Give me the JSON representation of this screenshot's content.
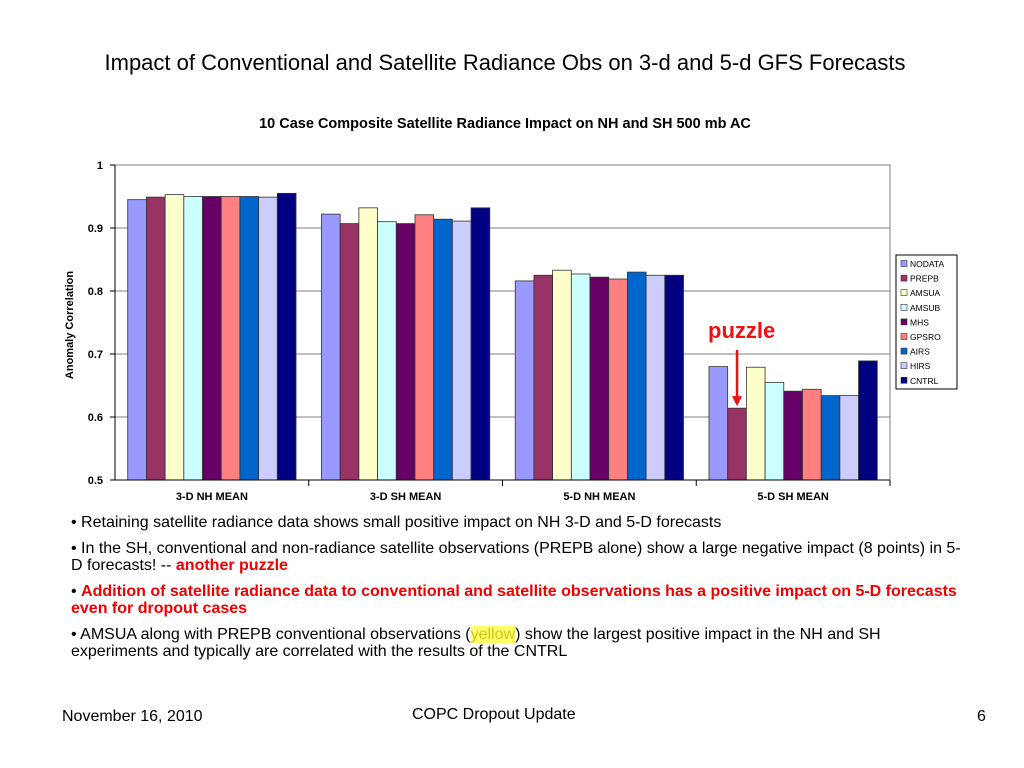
{
  "slide": {
    "title": "Impact of Conventional and Satellite Radiance Obs on 3-d and 5-d GFS Forecasts"
  },
  "chart_data": {
    "type": "bar",
    "title": "10 Case Composite Satellite Radiance Impact on NH and SH 500 mb AC",
    "xlabel": "",
    "ylabel": "Anomaly Correlation",
    "ylim": [
      0.5,
      1.0
    ],
    "yticks": [
      "0.5",
      "0.6",
      "0.7",
      "0.8",
      "0.9",
      "1"
    ],
    "ytick_values": [
      0.5,
      0.6,
      0.7,
      0.8,
      0.9,
      1.0
    ],
    "grid": true,
    "legend_position": "right",
    "categories": [
      "3-D NH MEAN",
      "3-D SH MEAN",
      "5-D NH MEAN",
      "5-D SH MEAN"
    ],
    "series": [
      {
        "name": "NODATA",
        "color": "#9999ff",
        "values": [
          0.945,
          0.922,
          0.816,
          0.68
        ]
      },
      {
        "name": "PREPB",
        "color": "#993366",
        "values": [
          0.949,
          0.907,
          0.825,
          0.614
        ]
      },
      {
        "name": "AMSUA",
        "color": "#ffffcc",
        "values": [
          0.953,
          0.932,
          0.833,
          0.679
        ]
      },
      {
        "name": "AMSUB",
        "color": "#ccffff",
        "values": [
          0.95,
          0.91,
          0.827,
          0.655
        ]
      },
      {
        "name": "MHS",
        "color": "#660066",
        "values": [
          0.95,
          0.907,
          0.822,
          0.641
        ]
      },
      {
        "name": "GPSRO",
        "color": "#ff8080",
        "values": [
          0.95,
          0.921,
          0.819,
          0.644
        ]
      },
      {
        "name": "AIRS",
        "color": "#0066cc",
        "values": [
          0.95,
          0.914,
          0.83,
          0.634
        ]
      },
      {
        "name": "HIRS",
        "color": "#ccccff",
        "values": [
          0.949,
          0.911,
          0.825,
          0.634
        ]
      },
      {
        "name": "CNTRL",
        "color": "#000080",
        "values": [
          0.955,
          0.932,
          0.825,
          0.689
        ]
      }
    ],
    "annotations": [
      {
        "text": "puzzle",
        "color": "#f01010",
        "target_series": "PREPB",
        "target_category": "5-D SH MEAN"
      }
    ]
  },
  "bullets": [
    {
      "parts": [
        {
          "text": "• Retaining satellite radiance data shows small positive impact on NH 3-D and 5-D forecasts",
          "style": "normal"
        }
      ]
    },
    {
      "parts": [
        {
          "text": "• In the SH, conventional and non-radiance satellite observations (PREPB alone) show a large negative impact (8 points) in 5-D forecasts!  --  ",
          "style": "normal"
        },
        {
          "text": "another puzzle",
          "style": "red"
        }
      ]
    },
    {
      "parts": [
        {
          "text": "• ",
          "style": "normal"
        },
        {
          "text": "Addition of satellite radiance data to conventional and satellite observations has a positive impact on 5-D forecasts even for dropout cases",
          "style": "red"
        }
      ]
    },
    {
      "parts": [
        {
          "text": "• AMSUA along with PREPB conventional observations (",
          "style": "normal"
        },
        {
          "text": "yellow",
          "style": "hl"
        },
        {
          "text": ") show the largest positive impact in the NH and SH experiments and typically are correlated with the results of the CNTRL",
          "style": "normal"
        }
      ]
    }
  ],
  "footer": {
    "date": "November 16, 2010",
    "center": "COPC Dropout Update",
    "page": "6"
  }
}
